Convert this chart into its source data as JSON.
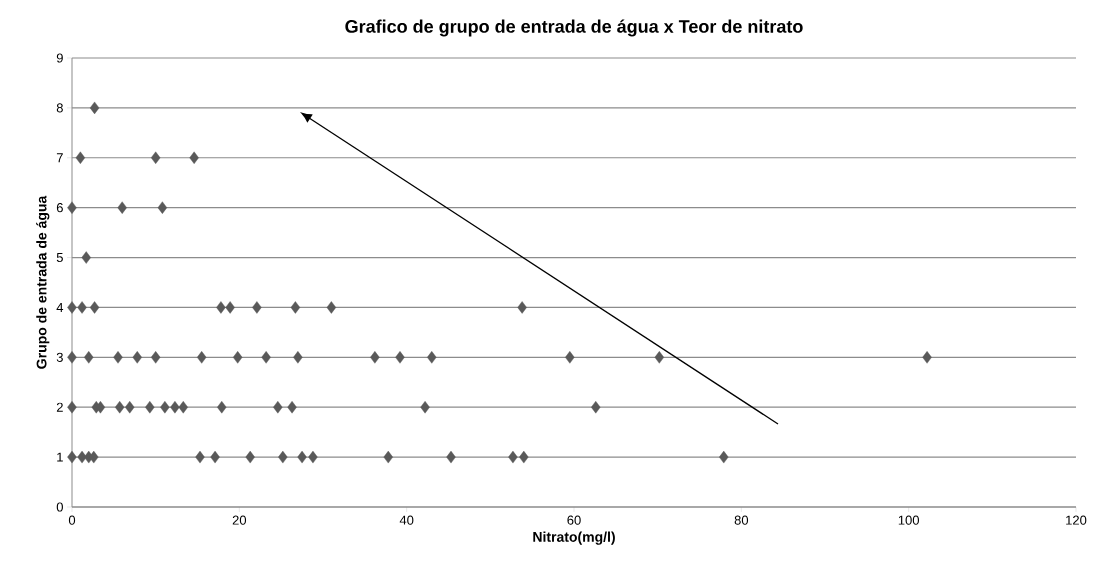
{
  "chart_data": {
    "type": "scatter",
    "title": "Grafico de grupo de entrada de água x Teor de nitrato",
    "xlabel": "Nitrato(mg/l)",
    "ylabel": "Grupo de entrada  de água",
    "series": [
      {
        "color": "#595959",
        "x": [
          2.7,
          1.0,
          10.0,
          14.6,
          0,
          6.0,
          10.8,
          1.7,
          0,
          1.2,
          2.7,
          17.8,
          18.9,
          22.1,
          26.7,
          31.0,
          53.8,
          0,
          2.0,
          5.5,
          7.8,
          10.0,
          15.5,
          19.8,
          23.2,
          27.0,
          36.2,
          39.2,
          43.0,
          59.5,
          70.2,
          102.2,
          0,
          2.9,
          3.4,
          5.7,
          6.9,
          9.3,
          11.1,
          12.3,
          13.3,
          17.9,
          24.6,
          26.3,
          42.2,
          62.6,
          0,
          1.2,
          2.0,
          2.6,
          15.3,
          17.1,
          21.3,
          25.2,
          27.5,
          28.8,
          37.8,
          45.3,
          52.7,
          54.0,
          77.9
        ],
        "values": [
          8,
          7,
          7,
          7,
          6,
          6,
          6,
          5,
          4,
          4,
          4,
          4,
          4,
          4,
          4,
          4,
          4,
          3,
          3,
          3,
          3,
          3,
          3,
          3,
          3,
          3,
          3,
          3,
          3,
          3,
          3,
          3,
          2,
          2,
          2,
          2,
          2,
          2,
          2,
          2,
          2,
          2,
          2,
          2,
          2,
          2,
          1,
          1,
          1,
          1,
          1,
          1,
          1,
          1,
          1,
          1,
          1,
          1,
          1,
          1,
          1
        ]
      }
    ],
    "xlim": [
      0,
      120
    ],
    "xticks": [
      0,
      20,
      40,
      60,
      80,
      100,
      120
    ],
    "ylim": [
      0,
      9
    ],
    "yticks": [
      0,
      1,
      2,
      3,
      4,
      5,
      6,
      7,
      8,
      9
    ],
    "grid": "y",
    "marker": "diamond"
  }
}
